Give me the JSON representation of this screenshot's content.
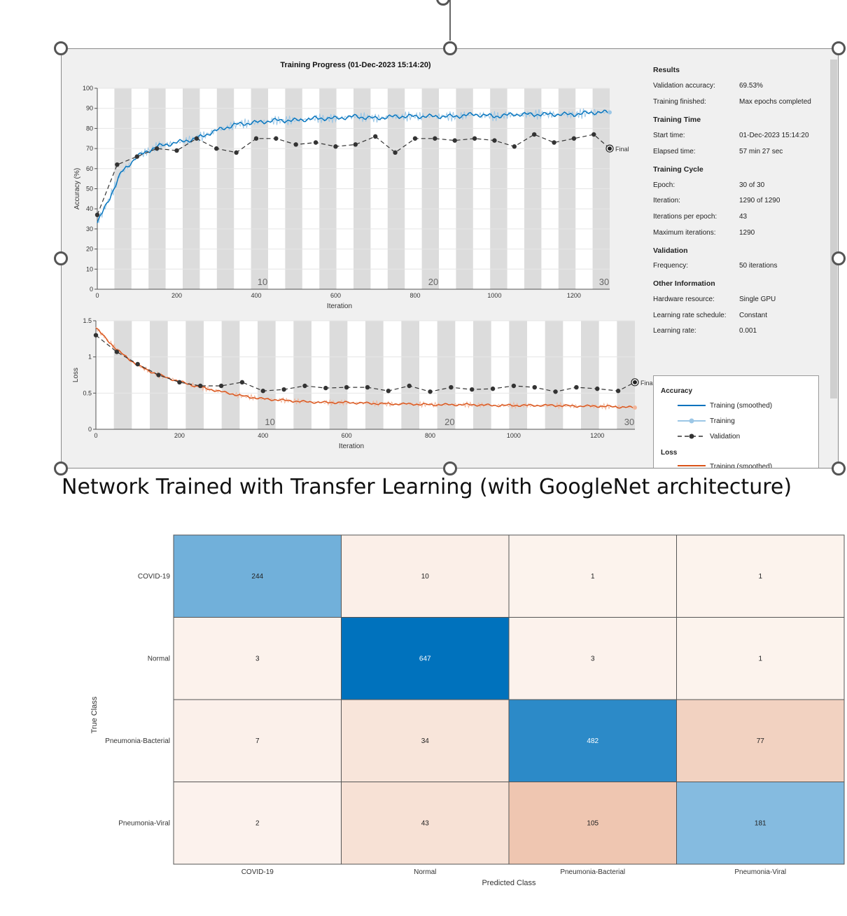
{
  "training_window": {
    "title": "Training Progress (01-Dec-2023 15:14:20)",
    "accuracy_axis": {
      "ylabel": "Accuracy (%)",
      "xlabel": "Iteration",
      "yticks": [
        "0",
        "10",
        "20",
        "30",
        "40",
        "50",
        "60",
        "70",
        "80",
        "90",
        "100"
      ],
      "xticks": [
        "0",
        "200",
        "400",
        "600",
        "800",
        "1000",
        "1200"
      ],
      "epoch_labels": [
        "10",
        "20",
        "30"
      ],
      "final_label": "Final"
    },
    "loss_axis": {
      "ylabel": "Loss",
      "xlabel": "Iteration",
      "yticks": [
        "0",
        "0.5",
        "1",
        "1.5"
      ],
      "xticks": [
        "0",
        "200",
        "400",
        "600",
        "800",
        "1000",
        "1200"
      ],
      "epoch_labels": [
        "10",
        "20",
        "30"
      ],
      "final_label": "Final"
    },
    "results": {
      "header": "Results",
      "rows": [
        {
          "label": "Validation accuracy:",
          "value": "69.53%"
        },
        {
          "label": "Training finished:",
          "value": "Max epochs completed"
        }
      ]
    },
    "training_time": {
      "header": "Training Time",
      "rows": [
        {
          "label": "Start time:",
          "value": "01-Dec-2023 15:14:20"
        },
        {
          "label": "Elapsed time:",
          "value": "57 min 27 sec"
        }
      ]
    },
    "training_cycle": {
      "header": "Training Cycle",
      "rows": [
        {
          "label": "Epoch:",
          "value": "30 of 30"
        },
        {
          "label": "Iteration:",
          "value": "1290 of 1290"
        },
        {
          "label": "Iterations per epoch:",
          "value": "43"
        },
        {
          "label": "Maximum iterations:",
          "value": "1290"
        }
      ]
    },
    "validation": {
      "header": "Validation",
      "rows": [
        {
          "label": "Frequency:",
          "value": "50 iterations"
        }
      ]
    },
    "other_information": {
      "header": "Other Information",
      "rows": [
        {
          "label": "Hardware resource:",
          "value": "Single GPU"
        },
        {
          "label": "Learning rate schedule:",
          "value": "Constant"
        },
        {
          "label": "Learning rate:",
          "value": "0.001"
        }
      ]
    },
    "legend": {
      "accuracy_header": "Accuracy",
      "training_smoothed": "Training (smoothed)",
      "training": "Training",
      "validation": "Validation",
      "loss_header": "Loss",
      "loss_training_smoothed": "Training (smoothed)"
    },
    "colors": {
      "accuracy_line": "#0072bd",
      "accuracy_raw": "#9cc7e6",
      "loss_line": "#d95319",
      "loss_raw": "#f2b79c",
      "validation": "#333333",
      "epoch_band": "#dcdcdc"
    }
  },
  "caption": "Network Trained with Transfer Learning (with GoogleNet architecture)",
  "chart_data": [
    {
      "type": "line",
      "title": "Training Progress (01-Dec-2023 15:14:20)",
      "xlabel": "Iteration",
      "ylabel": "Accuracy (%)",
      "xlim": [
        0,
        1290
      ],
      "ylim": [
        0,
        100
      ],
      "series": [
        {
          "name": "Training (smoothed)",
          "x": [
            0,
            30,
            60,
            100,
            150,
            200,
            250,
            300,
            350,
            400,
            450,
            500,
            550,
            600,
            650,
            700,
            750,
            800,
            850,
            900,
            950,
            1000,
            1050,
            1100,
            1150,
            1200,
            1250,
            1290
          ],
          "y": [
            33,
            45,
            58,
            66,
            71,
            73,
            75,
            79,
            82,
            83,
            84,
            84,
            85,
            85,
            86,
            85,
            86,
            86,
            86,
            86,
            87,
            86,
            87,
            87,
            87,
            87,
            88,
            88
          ]
        },
        {
          "name": "Validation",
          "x": [
            0,
            50,
            100,
            150,
            200,
            250,
            300,
            350,
            400,
            450,
            500,
            550,
            600,
            650,
            700,
            750,
            800,
            850,
            900,
            950,
            1000,
            1050,
            1100,
            1150,
            1200,
            1250,
            1290
          ],
          "y": [
            37,
            62,
            66,
            70,
            69,
            75,
            70,
            68,
            75,
            75,
            72,
            73,
            71,
            72,
            76,
            68,
            75,
            75,
            74,
            75,
            74,
            71,
            77,
            73,
            75,
            77,
            70
          ]
        }
      ]
    },
    {
      "type": "line",
      "xlabel": "Iteration",
      "ylabel": "Loss",
      "xlim": [
        0,
        1290
      ],
      "ylim": [
        0,
        1.5
      ],
      "series": [
        {
          "name": "Training (smoothed)",
          "x": [
            0,
            50,
            100,
            150,
            200,
            250,
            300,
            350,
            400,
            450,
            500,
            550,
            600,
            650,
            700,
            750,
            800,
            850,
            900,
            950,
            1000,
            1050,
            1100,
            1150,
            1200,
            1250,
            1290
          ],
          "y": [
            1.4,
            1.1,
            0.88,
            0.75,
            0.66,
            0.58,
            0.52,
            0.46,
            0.42,
            0.4,
            0.38,
            0.37,
            0.37,
            0.36,
            0.35,
            0.35,
            0.34,
            0.34,
            0.34,
            0.33,
            0.33,
            0.33,
            0.33,
            0.32,
            0.32,
            0.31,
            0.3
          ]
        },
        {
          "name": "Validation",
          "x": [
            0,
            50,
            100,
            150,
            200,
            250,
            300,
            350,
            400,
            450,
            500,
            550,
            600,
            650,
            700,
            750,
            800,
            850,
            900,
            950,
            1000,
            1050,
            1100,
            1150,
            1200,
            1250,
            1290
          ],
          "y": [
            1.3,
            1.07,
            0.9,
            0.75,
            0.65,
            0.6,
            0.6,
            0.65,
            0.53,
            0.55,
            0.6,
            0.57,
            0.58,
            0.58,
            0.53,
            0.6,
            0.52,
            0.58,
            0.55,
            0.56,
            0.6,
            0.58,
            0.52,
            0.58,
            0.56,
            0.53,
            0.65
          ]
        }
      ]
    },
    {
      "type": "heatmap",
      "title": "",
      "xlabel": "Predicted Class",
      "ylabel": "True Class",
      "x_categories": [
        "COVID-19",
        "Normal",
        "Pneumonia-Bacterial",
        "Pneumonia-Viral"
      ],
      "y_categories": [
        "COVID-19",
        "Normal",
        "Pneumonia-Bacterial",
        "Pneumonia-Viral"
      ],
      "values": [
        [
          244,
          10,
          1,
          1
        ],
        [
          3,
          647,
          3,
          1
        ],
        [
          7,
          34,
          482,
          77
        ],
        [
          2,
          43,
          105,
          181
        ]
      ]
    }
  ]
}
